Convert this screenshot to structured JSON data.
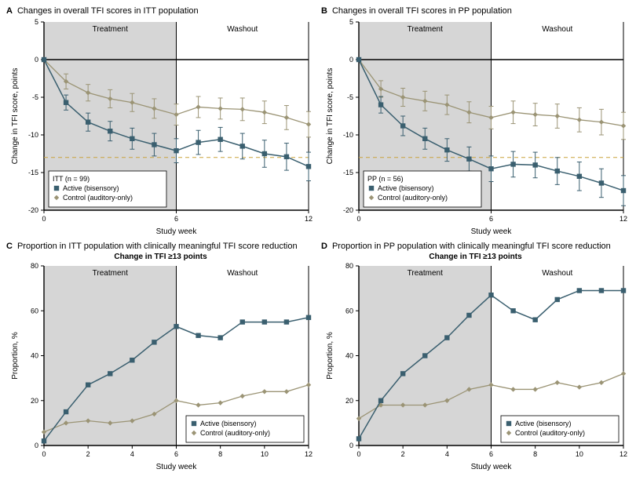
{
  "colors": {
    "active": "#3a5f6f",
    "control": "#9b9475",
    "axis": "#000000",
    "grid": "#888888",
    "shade": "#d6d6d6",
    "dashed": "#c9a23c",
    "background": "#ffffff",
    "text": "#000000"
  },
  "fonts": {
    "title": 11,
    "axis_label": 10,
    "tick": 9,
    "legend": 9,
    "phase": 10
  },
  "panels": {
    "A": {
      "letter": "A",
      "title": "Changes in overall TFI scores in ITT population",
      "type": "line_errorbar",
      "xlabel": "Study week",
      "ylabel": "Change in TFI score, points",
      "xlim": [
        0,
        12
      ],
      "xticks": [
        0,
        6,
        12
      ],
      "ylim": [
        -20,
        5
      ],
      "yticks": [
        -20,
        -15,
        -10,
        -5,
        0,
        5
      ],
      "shade_x": [
        0,
        6
      ],
      "phase_labels": [
        {
          "text": "Treatment",
          "x": 3
        },
        {
          "text": "Washout",
          "x": 9
        }
      ],
      "dashed_y": -13,
      "zero_line": 0,
      "legend": {
        "title": "ITT (n = 99)",
        "pos": "bottom-left",
        "items": [
          {
            "label": "Active (bisensory)",
            "marker": "square",
            "color": "active"
          },
          {
            "label": "Control (auditory-only)",
            "marker": "diamond",
            "color": "control"
          }
        ]
      },
      "series": {
        "active": {
          "marker": "square",
          "color": "active",
          "line_width": 1.5,
          "x": [
            0,
            1,
            2,
            3,
            4,
            5,
            6,
            7,
            8,
            9,
            10,
            11,
            12
          ],
          "y": [
            0,
            -5.7,
            -8.3,
            -9.5,
            -10.5,
            -11.3,
            -12.1,
            -11.0,
            -10.6,
            -11.5,
            -12.5,
            -12.9,
            -14.2
          ],
          "err": [
            0,
            1.0,
            1.2,
            1.3,
            1.4,
            1.5,
            1.6,
            1.6,
            1.6,
            1.7,
            1.8,
            1.8,
            1.9
          ]
        },
        "control": {
          "marker": "diamond",
          "color": "control",
          "line_width": 1.3,
          "x": [
            0,
            1,
            2,
            3,
            4,
            5,
            6,
            7,
            8,
            9,
            10,
            11,
            12
          ],
          "y": [
            0,
            -2.9,
            -4.4,
            -5.2,
            -5.7,
            -6.5,
            -7.3,
            -6.3,
            -6.5,
            -6.6,
            -7.0,
            -7.7,
            -8.6
          ],
          "err": [
            0,
            1.0,
            1.1,
            1.2,
            1.2,
            1.3,
            1.4,
            1.4,
            1.4,
            1.5,
            1.5,
            1.6,
            1.7
          ]
        }
      }
    },
    "B": {
      "letter": "B",
      "title": "Changes in overall TFI scores in PP population",
      "type": "line_errorbar",
      "xlabel": "Study week",
      "ylabel": "Change in TFI score, points",
      "xlim": [
        0,
        12
      ],
      "xticks": [
        0,
        6,
        12
      ],
      "ylim": [
        -20,
        5
      ],
      "yticks": [
        -20,
        -15,
        -10,
        -5,
        0,
        5
      ],
      "shade_x": [
        0,
        6
      ],
      "phase_labels": [
        {
          "text": "Treatment",
          "x": 3
        },
        {
          "text": "Washout",
          "x": 9
        }
      ],
      "dashed_y": -13,
      "zero_line": 0,
      "legend": {
        "title": "PP (n = 56)",
        "pos": "bottom-left",
        "items": [
          {
            "label": "Active (bisensory)",
            "marker": "square",
            "color": "active"
          },
          {
            "label": "Control (auditory-only)",
            "marker": "diamond",
            "color": "control"
          }
        ]
      },
      "series": {
        "active": {
          "marker": "square",
          "color": "active",
          "line_width": 1.5,
          "x": [
            0,
            1,
            2,
            3,
            4,
            5,
            6,
            7,
            8,
            9,
            10,
            11,
            12
          ],
          "y": [
            0,
            -6.0,
            -8.8,
            -10.5,
            -12.0,
            -13.2,
            -14.5,
            -13.9,
            -14.0,
            -14.8,
            -15.5,
            -16.4,
            -17.4
          ],
          "err": [
            0,
            1.1,
            1.3,
            1.4,
            1.5,
            1.6,
            1.7,
            1.7,
            1.7,
            1.8,
            1.9,
            1.9,
            2.0
          ]
        },
        "control": {
          "marker": "diamond",
          "color": "control",
          "line_width": 1.3,
          "x": [
            0,
            1,
            2,
            3,
            4,
            5,
            6,
            7,
            8,
            9,
            10,
            11,
            12
          ],
          "y": [
            0,
            -3.9,
            -5.0,
            -5.5,
            -6.0,
            -7.0,
            -7.7,
            -7.0,
            -7.3,
            -7.5,
            -8.0,
            -8.3,
            -8.8
          ],
          "err": [
            0,
            1.1,
            1.2,
            1.3,
            1.3,
            1.4,
            1.5,
            1.5,
            1.5,
            1.6,
            1.6,
            1.7,
            1.8
          ]
        }
      }
    },
    "C": {
      "letter": "C",
      "title": "Proportion in ITT population with clinically meaningful TFI score reduction",
      "subtitle": "Change in TFI ≥13 points",
      "type": "line",
      "xlabel": "Study week",
      "ylabel": "Proportion, %",
      "xlim": [
        0,
        12
      ],
      "xticks": [
        0,
        2,
        4,
        6,
        8,
        10,
        12
      ],
      "ylim": [
        0,
        80
      ],
      "yticks": [
        0,
        20,
        40,
        60,
        80
      ],
      "shade_x": [
        0,
        6
      ],
      "phase_labels": [
        {
          "text": "Treatment",
          "x": 3
        },
        {
          "text": "Washout",
          "x": 9
        }
      ],
      "legend": {
        "pos": "bottom-right",
        "items": [
          {
            "label": "Active (bisensory)",
            "marker": "square",
            "color": "active"
          },
          {
            "label": "Control (auditory-only)",
            "marker": "diamond",
            "color": "control"
          }
        ]
      },
      "series": {
        "active": {
          "marker": "square",
          "color": "active",
          "line_width": 1.5,
          "x": [
            0,
            1,
            2,
            3,
            4,
            5,
            6,
            7,
            8,
            9,
            10,
            11,
            12
          ],
          "y": [
            2,
            15,
            27,
            32,
            38,
            46,
            53,
            49,
            48,
            55,
            55,
            55,
            57
          ]
        },
        "control": {
          "marker": "diamond",
          "color": "control",
          "line_width": 1.3,
          "x": [
            0,
            1,
            2,
            3,
            4,
            5,
            6,
            7,
            8,
            9,
            10,
            11,
            12
          ],
          "y": [
            6,
            10,
            11,
            10,
            11,
            14,
            20,
            18,
            19,
            22,
            24,
            24,
            27
          ]
        }
      }
    },
    "D": {
      "letter": "D",
      "title": "Proportion in PP population with clinically meaningful TFI score reduction",
      "subtitle": "Change in TFI ≥13 points",
      "type": "line",
      "xlabel": "Study week",
      "ylabel": "Proportion, %",
      "xlim": [
        0,
        12
      ],
      "xticks": [
        0,
        2,
        4,
        6,
        8,
        10,
        12
      ],
      "ylim": [
        0,
        80
      ],
      "yticks": [
        0,
        20,
        40,
        60,
        80
      ],
      "shade_x": [
        0,
        6
      ],
      "phase_labels": [
        {
          "text": "Treatment",
          "x": 3
        },
        {
          "text": "Washout",
          "x": 9
        }
      ],
      "legend": {
        "pos": "bottom-right",
        "items": [
          {
            "label": "Active (bisensory)",
            "marker": "square",
            "color": "active"
          },
          {
            "label": "Control (auditory-only)",
            "marker": "diamond",
            "color": "control"
          }
        ]
      },
      "series": {
        "active": {
          "marker": "square",
          "color": "active",
          "line_width": 1.5,
          "x": [
            0,
            1,
            2,
            3,
            4,
            5,
            6,
            7,
            8,
            9,
            10,
            11,
            12
          ],
          "y": [
            3,
            20,
            32,
            40,
            48,
            58,
            67,
            60,
            56,
            65,
            69,
            69,
            69
          ]
        },
        "control": {
          "marker": "diamond",
          "color": "control",
          "line_width": 1.3,
          "x": [
            0,
            1,
            2,
            3,
            4,
            5,
            6,
            7,
            8,
            9,
            10,
            11,
            12
          ],
          "y": [
            12,
            18,
            18,
            18,
            20,
            25,
            27,
            25,
            25,
            28,
            26,
            28,
            32
          ]
        }
      }
    }
  }
}
